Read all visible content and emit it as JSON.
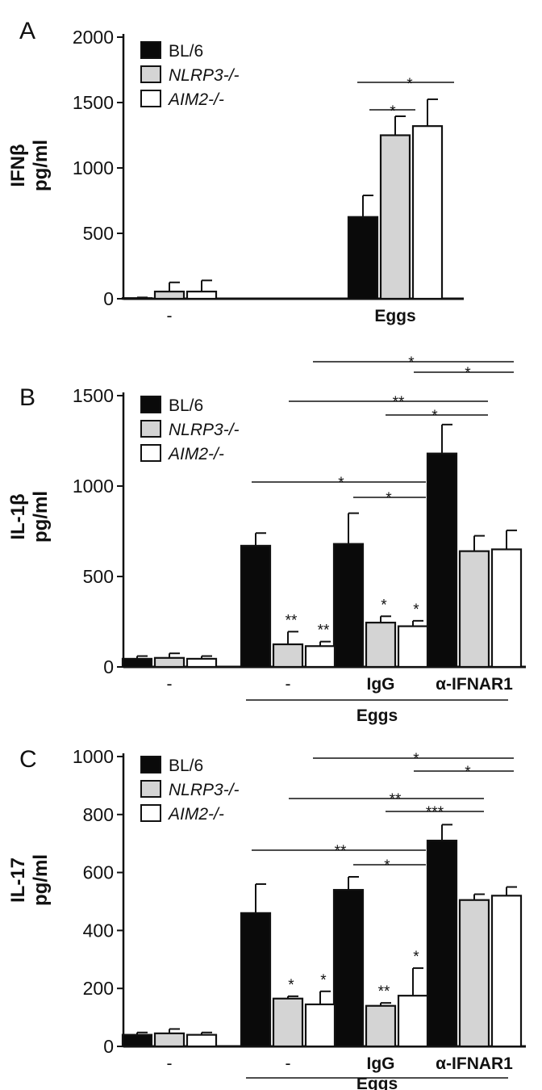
{
  "chart_data": [
    {
      "type": "bar",
      "panel": "A",
      "ylabel": [
        "IFNβ",
        "pg/ml"
      ],
      "ylim": [
        0,
        2000
      ],
      "yticks": [
        "0",
        "500",
        "1000",
        "1500",
        "2000"
      ],
      "group_labels": [
        "-",
        "Eggs"
      ],
      "legend": [
        "BL/6",
        "NLRP3-/-",
        "AIM2-/-"
      ],
      "series": [
        {
          "name": "BL/6",
          "values": [
            5,
            625
          ],
          "errors": [
            5,
            165
          ]
        },
        {
          "name": "NLRP3-/-",
          "values": [
            55,
            1250
          ],
          "errors": [
            70,
            145
          ]
        },
        {
          "name": "AIM2-/-",
          "values": [
            55,
            1320
          ],
          "errors": [
            85,
            205
          ]
        }
      ],
      "bar_stars": [],
      "brackets": [
        {
          "label": "*",
          "from": "Eggs BL/6",
          "to": "Eggs AIM2-/-"
        },
        {
          "label": "*",
          "from": "Eggs NLRP3-/-",
          "to": "Eggs NLRP3-/-"
        }
      ]
    },
    {
      "type": "bar",
      "panel": "B",
      "ylabel": [
        "IL-1β",
        "pg/ml"
      ],
      "ylim": [
        0,
        1500
      ],
      "yticks": [
        "0",
        "500",
        "1000",
        "1500"
      ],
      "group_labels": [
        "-",
        "-",
        "IgG",
        "α-IFNAR1"
      ],
      "underline_label": "Eggs",
      "legend": [
        "BL/6",
        "NLRP3-/-",
        "AIM2-/-"
      ],
      "series": [
        {
          "name": "BL/6",
          "values": [
            45,
            670,
            680,
            1180
          ],
          "errors": [
            15,
            70,
            170,
            160
          ]
        },
        {
          "name": "NLRP3-/-",
          "values": [
            50,
            125,
            245,
            640
          ],
          "errors": [
            25,
            70,
            35,
            85
          ]
        },
        {
          "name": "AIM2-/-",
          "values": [
            45,
            115,
            225,
            650
          ],
          "errors": [
            15,
            25,
            30,
            105
          ]
        }
      ],
      "bar_stars": [
        {
          "group": 1,
          "series": 1,
          "label": "**"
        },
        {
          "group": 1,
          "series": 2,
          "label": "**"
        },
        {
          "group": 2,
          "series": 1,
          "label": "*"
        },
        {
          "group": 2,
          "series": 2,
          "label": "*"
        }
      ],
      "brackets": [
        {
          "label": "*",
          "from": "Egg -",
          "to": "IgG"
        },
        {
          "label": "*",
          "from": "IgG",
          "to": "IgG AIM2-/-"
        },
        {
          "label": "**",
          "from": "Egg -",
          "to": "α-IFNAR1"
        },
        {
          "label": "*",
          "from": "IgG",
          "to": "α-IFNAR1"
        },
        {
          "label": "*",
          "from": "IgG",
          "to": "α-IFNAR1 AIM2-/-"
        },
        {
          "label": "*",
          "from": "α-IFNAR1",
          "to": "α-IFNAR1 AIM2-/-"
        }
      ]
    },
    {
      "type": "bar",
      "panel": "C",
      "ylabel": [
        "IL-17",
        "pg/ml"
      ],
      "ylim": [
        0,
        1000
      ],
      "yticks": [
        "0",
        "200",
        "400",
        "600",
        "800",
        "1000"
      ],
      "group_labels": [
        "-",
        "-",
        "IgG",
        "α-IFNAR1"
      ],
      "underline_label": "Eggs",
      "legend": [
        "BL/6",
        "NLRP3-/-",
        "AIM2-/-"
      ],
      "series": [
        {
          "name": "BL/6",
          "values": [
            40,
            460,
            540,
            710
          ],
          "errors": [
            8,
            100,
            45,
            55
          ]
        },
        {
          "name": "NLRP3-/-",
          "values": [
            45,
            165,
            140,
            505
          ],
          "errors": [
            15,
            8,
            10,
            20
          ]
        },
        {
          "name": "AIM2-/-",
          "values": [
            40,
            145,
            175,
            520
          ],
          "errors": [
            8,
            45,
            95,
            30
          ]
        }
      ],
      "bar_stars": [
        {
          "group": 1,
          "series": 1,
          "label": "*"
        },
        {
          "group": 1,
          "series": 2,
          "label": "*"
        },
        {
          "group": 2,
          "series": 1,
          "label": "**"
        },
        {
          "group": 2,
          "series": 2,
          "label": "*"
        }
      ],
      "brackets": [
        {
          "label": "*",
          "from": "Egg -",
          "to": "IgG"
        },
        {
          "label": "*",
          "from": "IgG",
          "to": "IgG AIM2-/-"
        },
        {
          "label": "**",
          "from": "Egg -",
          "to": "α-IFNAR1"
        },
        {
          "label": "***",
          "from": "IgG",
          "to": "α-IFNAR1"
        },
        {
          "label": "**",
          "from": "Egg -",
          "to": "α-IFNAR1 AIM2-/-"
        },
        {
          "label": "*",
          "from": "α-IFNAR1",
          "to": "α-IFNAR1 AIM2-/-"
        }
      ]
    }
  ],
  "colors": {
    "BL/6": "#0a0a0a",
    "NLRP3-/-": "#d4d4d4",
    "AIM2-/-": "#ffffff",
    "ink": "#111111"
  }
}
